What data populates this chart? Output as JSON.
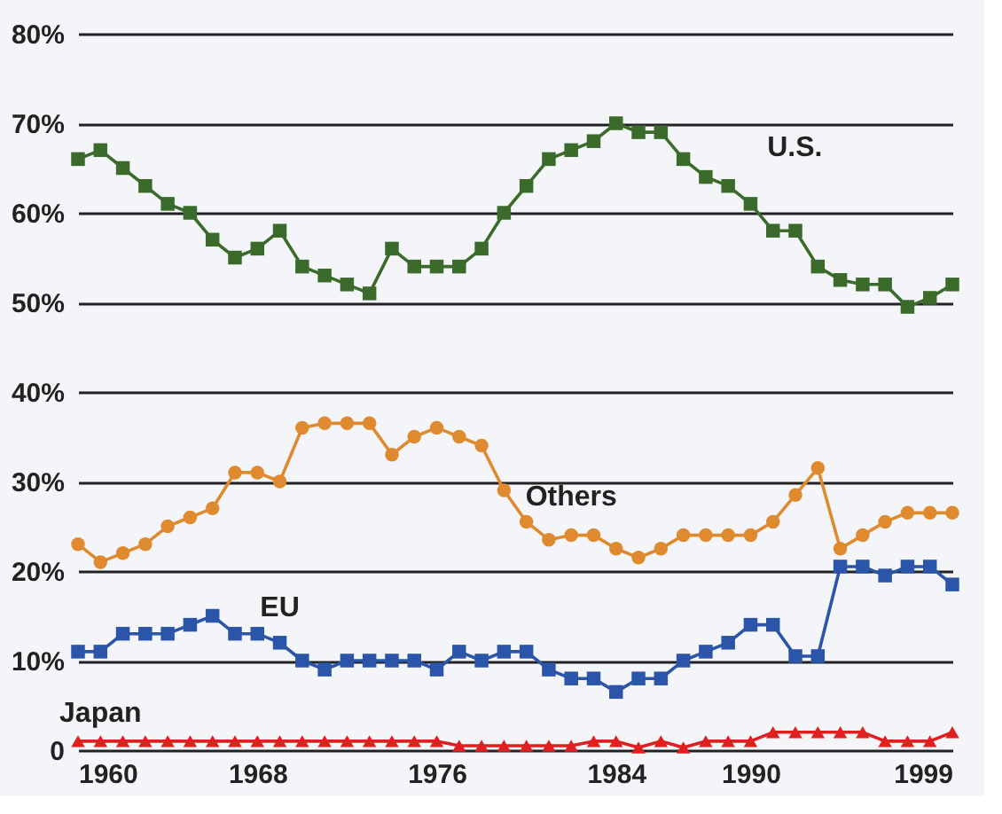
{
  "chart_data": {
    "type": "line",
    "x": [
      1960,
      1961,
      1962,
      1963,
      1964,
      1965,
      1966,
      1967,
      1968,
      1969,
      1970,
      1971,
      1972,
      1973,
      1974,
      1975,
      1976,
      1977,
      1978,
      1979,
      1980,
      1981,
      1982,
      1983,
      1984,
      1985,
      1986,
      1987,
      1988,
      1989,
      1990,
      1991,
      1992,
      1993,
      1994,
      1995,
      1996,
      1997,
      1998,
      1999
    ],
    "series": [
      {
        "name": "U.S.",
        "color": "#3b6b2a",
        "marker": "square",
        "values": [
          66,
          67,
          65,
          63,
          61,
          60,
          57,
          55,
          56,
          58,
          54,
          53,
          52,
          51,
          56,
          54,
          54,
          54,
          56,
          60,
          63,
          66,
          67,
          68,
          70,
          69,
          69,
          66,
          64,
          63,
          61,
          58,
          58,
          54,
          52.5,
          52,
          52,
          49.5,
          50.5,
          52
        ]
      },
      {
        "name": "Others",
        "color": "#e08a30",
        "marker": "circle",
        "values": [
          23,
          21,
          22,
          23,
          25,
          26,
          27,
          31,
          31,
          30,
          36,
          36.5,
          36.5,
          36.5,
          33,
          35,
          36,
          35,
          34,
          29,
          25.5,
          23.5,
          24,
          24,
          22.5,
          21.5,
          22.5,
          24,
          24,
          24,
          24,
          25.5,
          28.5,
          31.5,
          22.5,
          24,
          25.5,
          26.5,
          26.5,
          26.5
        ]
      },
      {
        "name": "EU",
        "color": "#2a55a8",
        "marker": "square",
        "values": [
          11,
          11,
          13,
          13,
          13,
          14,
          15,
          13,
          13,
          12,
          10,
          9,
          10,
          10,
          10,
          10,
          9,
          11,
          10,
          11,
          11,
          9,
          8,
          8,
          6.5,
          8,
          8,
          10,
          11,
          12,
          14,
          14,
          10.5,
          10.5,
          20.5,
          20.5,
          19.5,
          20.5,
          20.5,
          18.5
        ]
      },
      {
        "name": "Japan",
        "color": "#e02020",
        "marker": "triangle",
        "values": [
          1,
          1,
          1,
          1,
          1,
          1,
          1,
          1,
          1,
          1,
          1,
          1,
          1,
          1,
          1,
          1,
          1,
          0.5,
          0.5,
          0.5,
          0.5,
          0.5,
          0.5,
          1,
          1,
          0.3,
          1,
          0.3,
          1,
          1,
          1,
          2,
          2,
          2,
          2,
          2,
          1,
          1,
          1,
          2
        ]
      }
    ],
    "xlim": [
      1960,
      1999
    ],
    "xticks": [
      1960,
      1968,
      1976,
      1984,
      1990,
      1999
    ],
    "ylim": [
      0,
      80
    ],
    "yticks": [
      {
        "value": 0,
        "label": "0"
      },
      {
        "value": 10,
        "label": "10%"
      },
      {
        "value": 20,
        "label": "20%"
      },
      {
        "value": 30,
        "label": "30%"
      },
      {
        "value": 40,
        "label": "40%"
      },
      {
        "value": 50,
        "label": "50%"
      },
      {
        "value": 60,
        "label": "60%"
      },
      {
        "value": 70,
        "label": "70%"
      },
      {
        "value": 80,
        "label": "80%"
      }
    ],
    "grid": "y",
    "line_style": "solid"
  }
}
